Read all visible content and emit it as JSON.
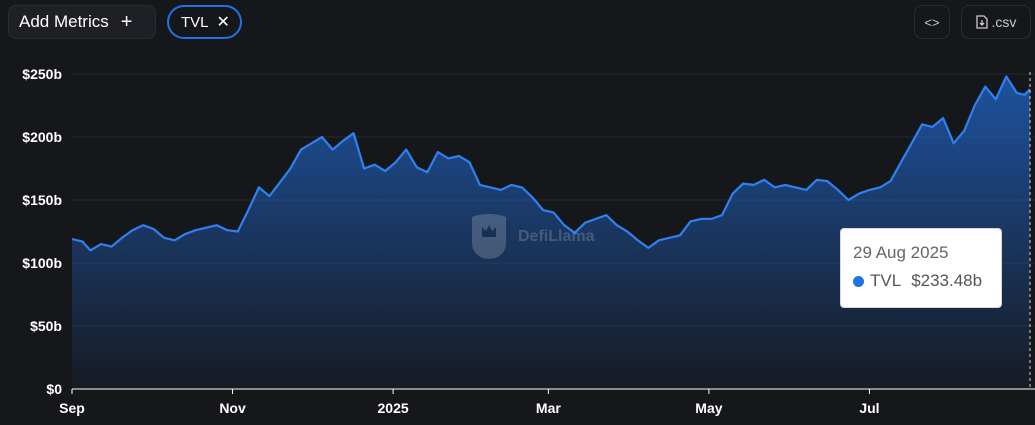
{
  "toolbar": {
    "add_metrics_label": "Add Metrics",
    "add_icon": "plus-icon",
    "metric_chip_label": "TVL",
    "remove_icon": "close-icon",
    "embed_icon": "code-icon",
    "csv_label": ".csv",
    "csv_icon": "download-file-icon"
  },
  "watermark": {
    "text": "DefiLlama"
  },
  "tooltip": {
    "date": "29 Aug 2025",
    "series": "TVL",
    "value": "$233.48b"
  },
  "colors": {
    "line": "#2172e5",
    "background": "#16171b",
    "text": "#ffffff"
  },
  "chart_data": {
    "type": "area",
    "series_name": "TVL",
    "x_ticks": [
      "Sep",
      "Nov",
      "2025",
      "Mar",
      "May",
      "Jul"
    ],
    "y_ticks": [
      "$0",
      "$50b",
      "$100b",
      "$150b",
      "$200b",
      "$250b"
    ],
    "ylim": [
      0,
      250
    ],
    "x_range": [
      "2024-09-01",
      "2025-08-31"
    ],
    "points": [
      [
        "2024-09-01",
        119
      ],
      [
        "2024-09-05",
        117
      ],
      [
        "2024-09-08",
        110
      ],
      [
        "2024-09-12",
        115
      ],
      [
        "2024-09-16",
        113
      ],
      [
        "2024-09-20",
        120
      ],
      [
        "2024-09-24",
        126
      ],
      [
        "2024-09-28",
        130
      ],
      [
        "2024-10-02",
        127
      ],
      [
        "2024-10-06",
        120
      ],
      [
        "2024-10-10",
        118
      ],
      [
        "2024-10-14",
        123
      ],
      [
        "2024-10-18",
        126
      ],
      [
        "2024-10-22",
        128
      ],
      [
        "2024-10-26",
        130
      ],
      [
        "2024-10-30",
        126
      ],
      [
        "2024-11-03",
        125
      ],
      [
        "2024-11-07",
        142
      ],
      [
        "2024-11-11",
        160
      ],
      [
        "2024-11-15",
        153
      ],
      [
        "2024-11-19",
        164
      ],
      [
        "2024-11-23",
        175
      ],
      [
        "2024-11-27",
        190
      ],
      [
        "2024-12-01",
        195
      ],
      [
        "2024-12-05",
        200
      ],
      [
        "2024-12-09",
        190
      ],
      [
        "2024-12-13",
        197
      ],
      [
        "2024-12-17",
        203
      ],
      [
        "2024-12-21",
        175
      ],
      [
        "2024-12-25",
        178
      ],
      [
        "2024-12-29",
        173
      ],
      [
        "2025-01-02",
        180
      ],
      [
        "2025-01-06",
        190
      ],
      [
        "2025-01-10",
        176
      ],
      [
        "2025-01-14",
        172
      ],
      [
        "2025-01-18",
        188
      ],
      [
        "2025-01-22",
        183
      ],
      [
        "2025-01-26",
        185
      ],
      [
        "2025-01-30",
        180
      ],
      [
        "2025-02-03",
        162
      ],
      [
        "2025-02-07",
        160
      ],
      [
        "2025-02-11",
        158
      ],
      [
        "2025-02-15",
        162
      ],
      [
        "2025-02-19",
        160
      ],
      [
        "2025-02-23",
        152
      ],
      [
        "2025-02-27",
        142
      ],
      [
        "2025-03-03",
        140
      ],
      [
        "2025-03-07",
        130
      ],
      [
        "2025-03-11",
        124
      ],
      [
        "2025-03-15",
        132
      ],
      [
        "2025-03-19",
        135
      ],
      [
        "2025-03-23",
        138
      ],
      [
        "2025-03-27",
        130
      ],
      [
        "2025-03-31",
        125
      ],
      [
        "2025-04-04",
        118
      ],
      [
        "2025-04-08",
        112
      ],
      [
        "2025-04-12",
        118
      ],
      [
        "2025-04-16",
        120
      ],
      [
        "2025-04-20",
        122
      ],
      [
        "2025-04-24",
        133
      ],
      [
        "2025-04-28",
        135
      ],
      [
        "2025-05-02",
        135
      ],
      [
        "2025-05-06",
        138
      ],
      [
        "2025-05-10",
        155
      ],
      [
        "2025-05-14",
        163
      ],
      [
        "2025-05-18",
        162
      ],
      [
        "2025-05-22",
        166
      ],
      [
        "2025-05-26",
        160
      ],
      [
        "2025-05-30",
        162
      ],
      [
        "2025-06-03",
        160
      ],
      [
        "2025-06-07",
        158
      ],
      [
        "2025-06-11",
        166
      ],
      [
        "2025-06-15",
        165
      ],
      [
        "2025-06-19",
        158
      ],
      [
        "2025-06-23",
        150
      ],
      [
        "2025-06-27",
        155
      ],
      [
        "2025-07-01",
        158
      ],
      [
        "2025-07-05",
        160
      ],
      [
        "2025-07-09",
        165
      ],
      [
        "2025-07-13",
        180
      ],
      [
        "2025-07-17",
        195
      ],
      [
        "2025-07-21",
        210
      ],
      [
        "2025-07-25",
        208
      ],
      [
        "2025-07-29",
        215
      ],
      [
        "2025-08-02",
        195
      ],
      [
        "2025-08-06",
        205
      ],
      [
        "2025-08-10",
        225
      ],
      [
        "2025-08-14",
        240
      ],
      [
        "2025-08-18",
        230
      ],
      [
        "2025-08-22",
        248
      ],
      [
        "2025-08-26",
        235
      ],
      [
        "2025-08-29",
        233.48
      ],
      [
        "2025-08-31",
        238
      ]
    ]
  }
}
